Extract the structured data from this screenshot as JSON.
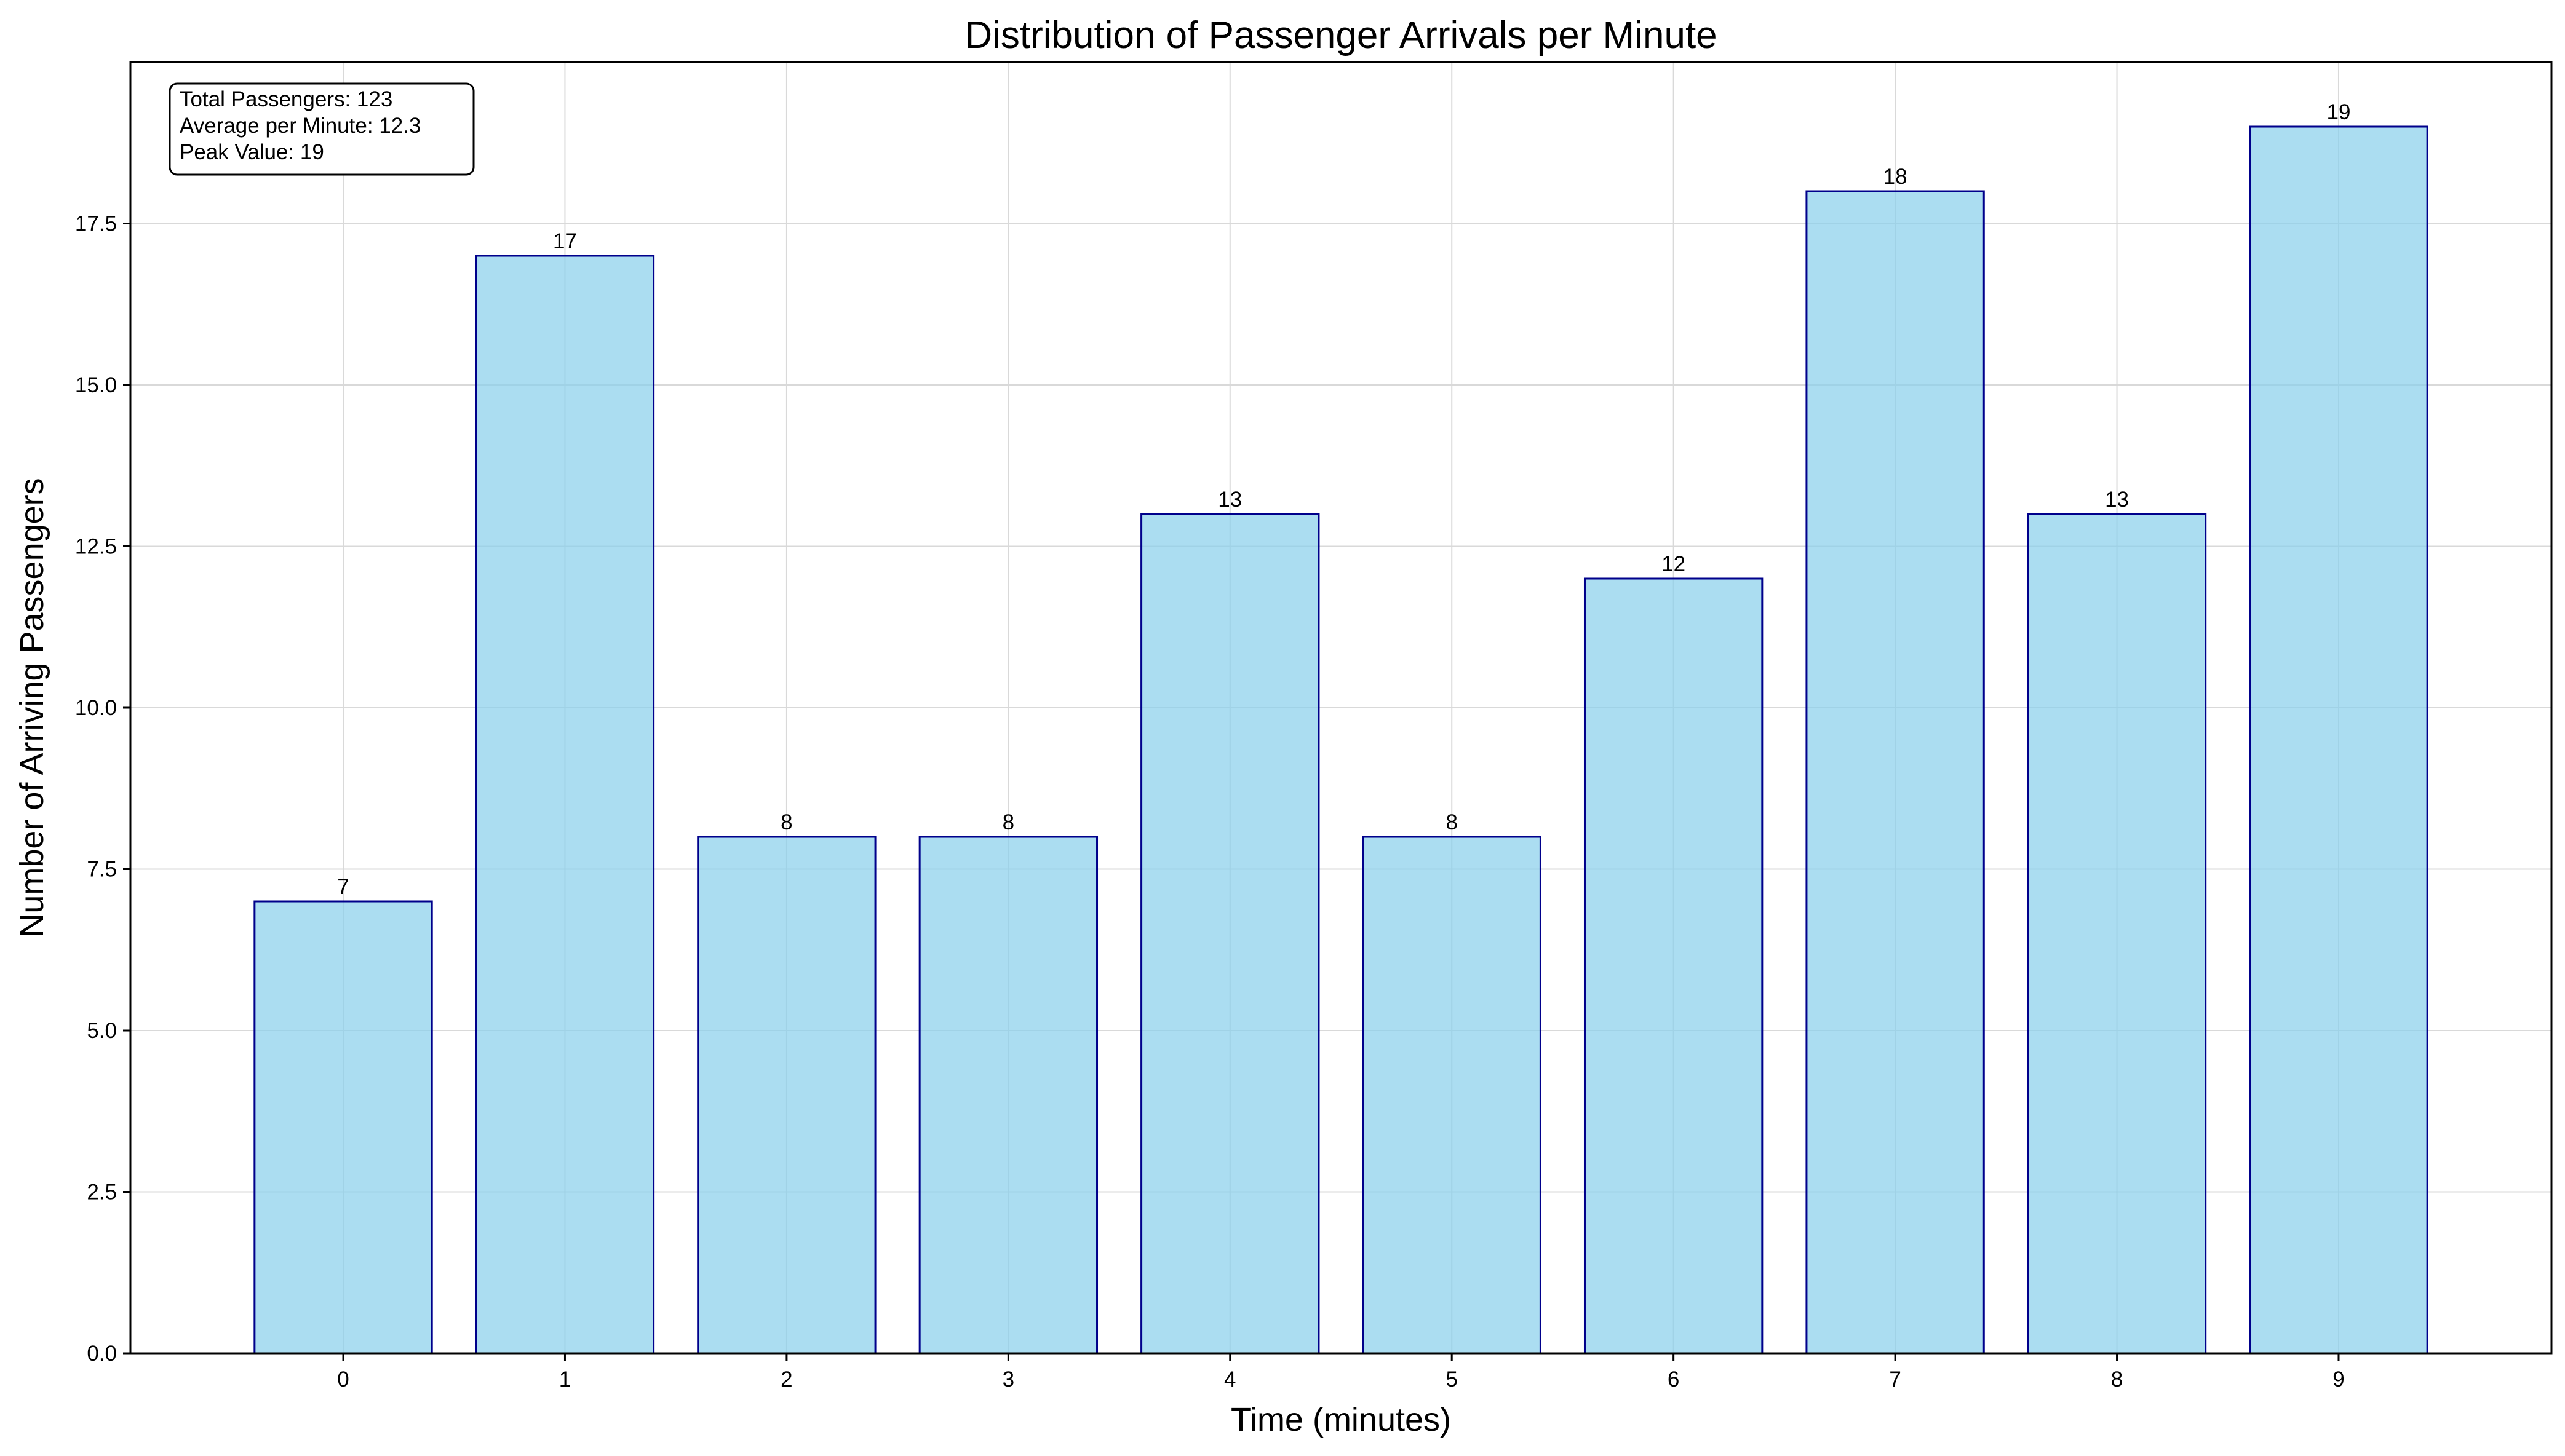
{
  "chart_data": {
    "type": "bar",
    "title": "Distribution of Passenger Arrivals per Minute",
    "xlabel": "Time (minutes)",
    "ylabel": "Number of Arriving Passengers",
    "categories": [
      "0",
      "1",
      "2",
      "3",
      "4",
      "5",
      "6",
      "7",
      "8",
      "9"
    ],
    "values": [
      7,
      17,
      8,
      8,
      13,
      8,
      12,
      18,
      13,
      19
    ],
    "ylim": [
      0,
      20
    ],
    "yticks": [
      "0.0",
      "2.5",
      "5.0",
      "7.5",
      "10.0",
      "12.5",
      "15.0",
      "17.5"
    ],
    "grid": true,
    "bar_color": "#87ceeb",
    "bar_edge_color": "#00008b",
    "annotation": {
      "position": "top-left",
      "lines": [
        "Total Passengers: 123",
        "Average per Minute: 12.3",
        "Peak Value: 19"
      ]
    }
  }
}
